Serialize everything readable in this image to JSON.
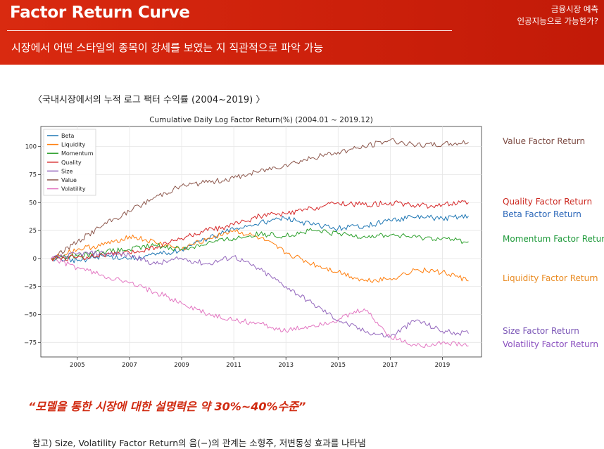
{
  "header": {
    "title": "Factor Return Curve",
    "subtitle": "시장에서 어떤 스타일의 종목이 강세를 보였는 지 직관적으로 파악 가능",
    "corner_line1": "금융시장 예측",
    "corner_line2": "인공지능으로 가능한가?"
  },
  "caption": "〈국내시장에서의 누적 로그 팩터 수익률 (2004~2019) 〉",
  "right_labels": [
    {
      "text": "Value Factor Return",
      "color": "#7d4b43"
    },
    {
      "text": "Quality Factor Return",
      "color": "#cc2a22"
    },
    {
      "text": "Beta Factor Return",
      "color": "#2a66b8"
    },
    {
      "text": "Momentum Factor Return",
      "color": "#1e9a3a"
    },
    {
      "text": "Liquidity Factor Return",
      "color": "#e98a20"
    },
    {
      "text": "Size Factor Return",
      "color": "#7a55b6"
    },
    {
      "text": "Volatility Factor Return",
      "color": "#8a4fbf"
    }
  ],
  "quote": "“모델을 통한 시장에 대한 설명력은 약 30%~40%수준”",
  "footnote": "참고) Size, Volatility Factor Return의 음(−)의 관계는 소형주, 저변동성 효과를 나타냄",
  "chart_data": {
    "type": "line",
    "title": "Cumulative Daily Log Factor Return(%) (2004.01 ~ 2019.12)",
    "xlabel": "",
    "ylabel": "",
    "xlim": [
      2003.6,
      2020.5
    ],
    "ylim": [
      -88,
      118
    ],
    "xticks": [
      2005,
      2007,
      2009,
      2011,
      2013,
      2015,
      2017,
      2019
    ],
    "xtick_labels": [
      "2005",
      "2007",
      "2009",
      "2011",
      "2013",
      "2015",
      "2017",
      "2019"
    ],
    "yticks": [
      100,
      75,
      50,
      25,
      0,
      -25,
      -50,
      -75
    ],
    "ytick_labels": [
      "100",
      "75",
      "50",
      "25",
      "0",
      "−25",
      "−50",
      "−75"
    ],
    "grid": true,
    "legend_position": "top-left",
    "series": [
      {
        "name": "Beta",
        "color": "#1f77b4",
        "x": [
          2004,
          2005,
          2006,
          2007,
          2008,
          2009,
          2010,
          2011,
          2012,
          2013,
          2014,
          2015,
          2016,
          2017,
          2018,
          2019,
          2020
        ],
        "y": [
          0,
          -2,
          2,
          0,
          3,
          8,
          18,
          26,
          32,
          36,
          30,
          27,
          29,
          34,
          37,
          36,
          38
        ]
      },
      {
        "name": "Liquidity",
        "color": "#ff7f0e",
        "x": [
          2004,
          2005,
          2006,
          2007,
          2008,
          2009,
          2010,
          2011,
          2012,
          2013,
          2014,
          2015,
          2016,
          2017,
          2018,
          2019,
          2020
        ],
        "y": [
          0,
          8,
          12,
          20,
          14,
          8,
          18,
          25,
          18,
          5,
          -5,
          -12,
          -20,
          -18,
          -10,
          -12,
          -20
        ]
      },
      {
        "name": "Momentum",
        "color": "#2ca02c",
        "x": [
          2004,
          2005,
          2006,
          2007,
          2008,
          2009,
          2010,
          2011,
          2012,
          2013,
          2014,
          2015,
          2016,
          2017,
          2018,
          2019,
          2020
        ],
        "y": [
          0,
          2,
          6,
          8,
          12,
          8,
          14,
          18,
          22,
          20,
          25,
          22,
          20,
          21,
          19,
          18,
          15
        ]
      },
      {
        "name": "Quality",
        "color": "#d62728",
        "x": [
          2004,
          2005,
          2006,
          2007,
          2008,
          2009,
          2010,
          2011,
          2012,
          2013,
          2014,
          2015,
          2016,
          2017,
          2018,
          2019,
          2020
        ],
        "y": [
          0,
          1,
          3,
          5,
          10,
          18,
          25,
          30,
          38,
          40,
          45,
          50,
          48,
          50,
          47,
          48,
          50
        ]
      },
      {
        "name": "Size",
        "color": "#9467bd",
        "x": [
          2004,
          2005,
          2006,
          2007,
          2008,
          2009,
          2010,
          2011,
          2012,
          2013,
          2014,
          2015,
          2016,
          2017,
          2018,
          2019,
          2020
        ],
        "y": [
          0,
          4,
          5,
          3,
          -5,
          0,
          -5,
          2,
          -10,
          -25,
          -40,
          -55,
          -65,
          -70,
          -55,
          -65,
          -67
        ]
      },
      {
        "name": "Value",
        "color": "#8c564b",
        "x": [
          2004,
          2005,
          2006,
          2007,
          2008,
          2009,
          2010,
          2011,
          2012,
          2013,
          2014,
          2015,
          2016,
          2017,
          2018,
          2019,
          2020
        ],
        "y": [
          0,
          15,
          30,
          42,
          55,
          65,
          68,
          72,
          78,
          84,
          90,
          95,
          100,
          106,
          101,
          102,
          104
        ]
      },
      {
        "name": "Volatility",
        "color": "#e377c2",
        "x": [
          2004,
          2005,
          2006,
          2007,
          2008,
          2009,
          2010,
          2011,
          2012,
          2013,
          2014,
          2015,
          2016,
          2017,
          2018,
          2019,
          2020
        ],
        "y": [
          0,
          -8,
          -15,
          -22,
          -30,
          -40,
          -50,
          -55,
          -58,
          -65,
          -60,
          -55,
          -45,
          -70,
          -78,
          -75,
          -78
        ]
      }
    ]
  }
}
